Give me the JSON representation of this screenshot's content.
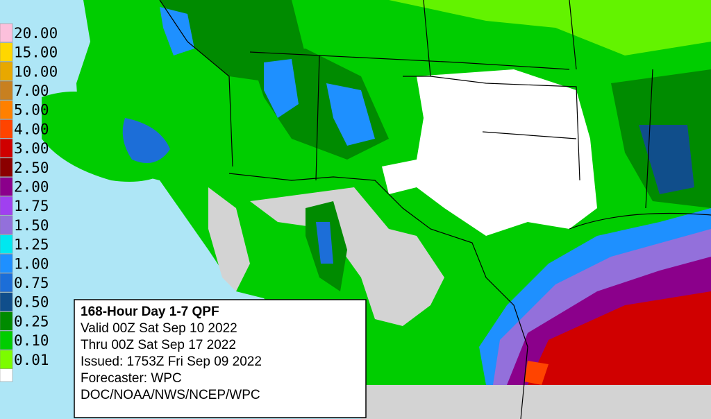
{
  "legend": {
    "items": [
      {
        "label": "20.00",
        "color": "#fcc0dc"
      },
      {
        "label": "15.00",
        "color": "#ffd700"
      },
      {
        "label": "10.00",
        "color": "#e8a800"
      },
      {
        "label": "7.00",
        "color": "#c88020"
      },
      {
        "label": "5.00",
        "color": "#ff8000"
      },
      {
        "label": "4.00",
        "color": "#ff4400"
      },
      {
        "label": "3.00",
        "color": "#d00000"
      },
      {
        "label": "2.50",
        "color": "#8b0000"
      },
      {
        "label": "2.00",
        "color": "#8b008b"
      },
      {
        "label": "1.75",
        "color": "#a040f0"
      },
      {
        "label": "1.50",
        "color": "#9370db"
      },
      {
        "label": "1.25",
        "color": "#00e8f0"
      },
      {
        "label": "1.00",
        "color": "#1e90ff"
      },
      {
        "label": "0.75",
        "color": "#1c6ed8"
      },
      {
        "label": "0.50",
        "color": "#104e8b"
      },
      {
        "label": "0.25",
        "color": "#008b00"
      },
      {
        "label": "0.10",
        "color": "#00cd00"
      },
      {
        "label": "0.01",
        "color": "#7cfc00"
      }
    ]
  },
  "info_box": {
    "title": "168-Hour Day 1-7 QPF",
    "lines": [
      "Valid 00Z Sat Sep 10 2022",
      "Thru 00Z Sat Sep 17 2022",
      "Issued: 1753Z Fri Sep 09 2022",
      "Forecaster: WPC",
      "DOC/NOAA/NWS/NCEP/WPC"
    ]
  }
}
